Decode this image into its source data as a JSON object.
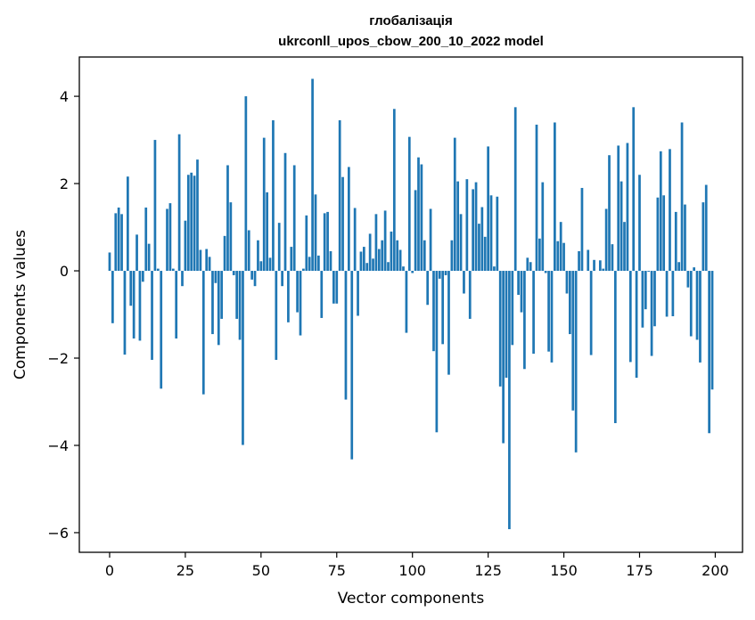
{
  "chart_data": {
    "type": "bar",
    "title": "глобалізація",
    "subtitle": "ukrconll_upos_cbow_200_10_2022 model",
    "xlabel": "Vector components",
    "ylabel": "Components values",
    "xlim": [
      -10,
      209
    ],
    "ylim": [
      -6.45,
      4.9
    ],
    "xticks": [
      0,
      25,
      50,
      75,
      100,
      125,
      150,
      175,
      200
    ],
    "xtick_labels": [
      "0",
      "25",
      "50",
      "75",
      "100",
      "125",
      "150",
      "175",
      "200"
    ],
    "yticks": [
      -6,
      -4,
      -2,
      0,
      2,
      4
    ],
    "ytick_labels": [
      "−6",
      "−4",
      "−2",
      "0",
      "2",
      "4"
    ],
    "grid": false,
    "bar_color": "#1f77b4",
    "x": [
      0,
      1,
      2,
      3,
      4,
      5,
      6,
      7,
      8,
      9,
      10,
      11,
      12,
      13,
      14,
      15,
      16,
      17,
      18,
      19,
      20,
      21,
      22,
      23,
      24,
      25,
      26,
      27,
      28,
      29,
      30,
      31,
      32,
      33,
      34,
      35,
      36,
      37,
      38,
      39,
      40,
      41,
      42,
      43,
      44,
      45,
      46,
      47,
      48,
      49,
      50,
      51,
      52,
      53,
      54,
      55,
      56,
      57,
      58,
      59,
      60,
      61,
      62,
      63,
      64,
      65,
      66,
      67,
      68,
      69,
      70,
      71,
      72,
      73,
      74,
      75,
      76,
      77,
      78,
      79,
      80,
      81,
      82,
      83,
      84,
      85,
      86,
      87,
      88,
      89,
      90,
      91,
      92,
      93,
      94,
      95,
      96,
      97,
      98,
      99,
      100,
      101,
      102,
      103,
      104,
      105,
      106,
      107,
      108,
      109,
      110,
      111,
      112,
      113,
      114,
      115,
      116,
      117,
      118,
      119,
      120,
      121,
      122,
      123,
      124,
      125,
      126,
      127,
      128,
      129,
      130,
      131,
      132,
      133,
      134,
      135,
      136,
      137,
      138,
      139,
      140,
      141,
      142,
      143,
      144,
      145,
      146,
      147,
      148,
      149,
      150,
      151,
      152,
      153,
      154,
      155,
      156,
      157,
      158,
      159,
      160,
      161,
      162,
      163,
      164,
      165,
      166,
      167,
      168,
      169,
      170,
      171,
      172,
      173,
      174,
      175,
      176,
      177,
      178,
      179,
      180,
      181,
      182,
      183,
      184,
      185,
      186,
      187,
      188,
      189,
      190,
      191,
      192,
      193,
      194,
      195,
      196,
      197,
      198,
      199
    ],
    "values": [
      0.42,
      -1.2,
      1.32,
      1.45,
      1.3,
      -1.92,
      2.16,
      -0.8,
      -1.55,
      0.83,
      -1.6,
      -0.25,
      1.45,
      0.62,
      -2.04,
      3.0,
      0.05,
      -2.7,
      0.0,
      1.42,
      1.55,
      0.05,
      -1.55,
      3.13,
      -0.35,
      1.15,
      2.2,
      2.25,
      2.18,
      2.55,
      0.48,
      -2.83,
      0.5,
      0.32,
      -1.45,
      -0.28,
      -1.7,
      -1.1,
      0.8,
      2.42,
      1.57,
      -0.1,
      -1.1,
      -1.58,
      -3.99,
      4.0,
      0.93,
      -0.2,
      -0.35,
      0.7,
      0.22,
      3.05,
      1.8,
      0.3,
      3.45,
      -2.04,
      1.1,
      -0.35,
      2.7,
      -1.18,
      0.55,
      2.42,
      -0.95,
      -1.48,
      0.05,
      1.27,
      0.32,
      4.4,
      1.75,
      0.35,
      -1.08,
      1.32,
      1.35,
      0.45,
      -0.75,
      -0.75,
      3.45,
      2.15,
      -2.95,
      2.38,
      -4.32,
      1.44,
      -1.03,
      0.44,
      0.55,
      0.18,
      0.85,
      0.28,
      1.3,
      0.5,
      0.7,
      1.38,
      0.2,
      0.9,
      3.71,
      0.7,
      0.48,
      0.1,
      -1.42,
      3.07,
      -0.05,
      1.85,
      2.6,
      2.44,
      0.7,
      -0.78,
      1.42,
      -1.84,
      -3.7,
      -0.18,
      -1.68,
      -0.1,
      -2.38,
      0.7,
      3.05,
      2.05,
      1.3,
      -0.52,
      2.1,
      -1.1,
      1.87,
      2.03,
      1.08,
      1.46,
      0.78,
      2.85,
      1.73,
      0.1,
      1.7,
      -2.65,
      -3.95,
      -2.45,
      -5.92,
      -1.7,
      3.75,
      -0.55,
      -0.95,
      -2.25,
      0.3,
      0.2,
      -1.9,
      3.35,
      0.74,
      2.03,
      -0.05,
      -1.85,
      -2.1,
      3.4,
      0.68,
      1.12,
      0.64,
      -0.52,
      -1.45,
      -3.2,
      -4.16,
      0.45,
      1.9,
      0.0,
      0.48,
      -1.93,
      0.25,
      0.0,
      0.24,
      0.05,
      1.42,
      2.65,
      0.61,
      -3.49,
      2.87,
      2.05,
      1.12,
      2.93,
      -2.09,
      3.75,
      -2.45,
      2.2,
      -1.3,
      -0.88,
      -0.02,
      -1.95,
      -1.27,
      1.68,
      2.74,
      1.73,
      -1.05,
      2.79,
      -1.04,
      1.35,
      0.2,
      3.4,
      1.52,
      -0.38,
      -1.5,
      0.08,
      -1.58,
      -2.1,
      1.57,
      1.97,
      -3.72,
      -2.72
    ]
  }
}
